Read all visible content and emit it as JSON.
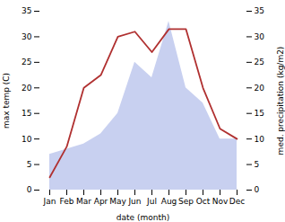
{
  "chart_data": {
    "type": "line",
    "xlabel": "date (month)",
    "ylabel": "max temp (C)",
    "y2label": "med. precipitation (kg/m2)",
    "categories": [
      "Jan",
      "Feb",
      "Mar",
      "Apr",
      "May",
      "Jun",
      "Jul",
      "Aug",
      "Sep",
      "Oct",
      "Nov",
      "Dec"
    ],
    "series": [
      {
        "type": "area",
        "axis": "y2",
        "color": "#c8d0f0",
        "values": [
          7,
          8,
          9,
          11,
          15,
          25,
          22,
          33,
          20,
          17,
          10,
          10
        ]
      },
      {
        "type": "line",
        "color": "#b03030",
        "values": [
          2.5,
          8.5,
          20.0,
          22.5,
          30.0,
          31.0,
          27.0,
          31.5,
          31.5,
          20.0,
          12.0,
          10.0
        ]
      }
    ],
    "ylim": [
      0,
      35
    ],
    "yticks": [
      0,
      5,
      10,
      15,
      20,
      25,
      30,
      35
    ],
    "y2lim": [
      0,
      35
    ],
    "y2ticks": [
      0,
      5,
      10,
      15,
      20,
      25,
      30,
      35
    ]
  }
}
